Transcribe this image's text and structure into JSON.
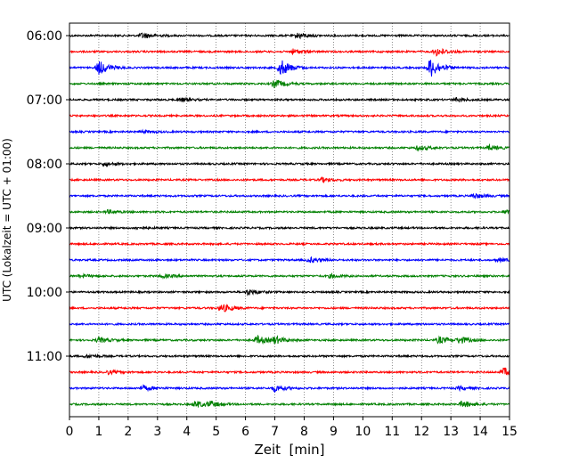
{
  "chart_data": {
    "type": "line",
    "title": "",
    "xlabel": "Zeit  [min]",
    "ylabel": "UTC (Lokalzeit = UTC + 01:00)",
    "xlim": [
      0,
      15
    ],
    "x_ticks": [
      "0",
      "1",
      "2",
      "3",
      "4",
      "5",
      "6",
      "7",
      "8",
      "9",
      "10",
      "11",
      "12",
      "13",
      "14",
      "15"
    ],
    "y_ticks": [
      "06:00",
      "07:00",
      "08:00",
      "09:00",
      "10:00",
      "11:00"
    ],
    "grid": "vertical dotted at each minute",
    "trace_interval_minutes": 15,
    "trace_colors": [
      "#000000",
      "#ff0000",
      "#0000ff",
      "#008000"
    ],
    "traces": [
      {
        "start": "06:00",
        "events": [
          {
            "t": 2.5,
            "a": 0.35
          },
          {
            "t": 7.8,
            "a": 0.35
          }
        ]
      },
      {
        "start": "06:15",
        "events": [
          {
            "t": 7.6,
            "a": 0.3
          },
          {
            "t": 12.5,
            "a": 0.5
          }
        ]
      },
      {
        "start": "06:30",
        "events": [
          {
            "t": 1.0,
            "a": 0.85
          },
          {
            "t": 7.2,
            "a": 1.0
          },
          {
            "t": 12.3,
            "a": 1.2
          }
        ]
      },
      {
        "start": "06:45",
        "events": [
          {
            "t": 7.0,
            "a": 0.5
          }
        ]
      },
      {
        "start": "07:00",
        "events": [
          {
            "t": 3.8,
            "a": 0.2
          },
          {
            "t": 13.2,
            "a": 0.2
          }
        ]
      },
      {
        "start": "07:15",
        "events": []
      },
      {
        "start": "07:30",
        "events": [
          {
            "t": 2.5,
            "a": 0.15
          }
        ]
      },
      {
        "start": "07:45",
        "events": [
          {
            "t": 11.9,
            "a": 0.3
          },
          {
            "t": 14.3,
            "a": 0.3
          }
        ]
      },
      {
        "start": "08:00",
        "events": [
          {
            "t": 1.2,
            "a": 0.2
          }
        ]
      },
      {
        "start": "08:15",
        "events": [
          {
            "t": 8.6,
            "a": 0.25
          }
        ]
      },
      {
        "start": "08:30",
        "events": [
          {
            "t": 13.8,
            "a": 0.3
          }
        ]
      },
      {
        "start": "08:45",
        "events": [
          {
            "t": 1.3,
            "a": 0.2
          },
          {
            "t": 14.9,
            "a": 0.3
          }
        ]
      },
      {
        "start": "09:00",
        "events": [
          {
            "t": 2.3,
            "a": 0.15
          }
        ]
      },
      {
        "start": "09:15",
        "events": []
      },
      {
        "start": "09:30",
        "events": [
          {
            "t": 8.2,
            "a": 0.3
          },
          {
            "t": 14.6,
            "a": 0.2
          }
        ]
      },
      {
        "start": "09:45",
        "events": [
          {
            "t": 0.4,
            "a": 0.2
          },
          {
            "t": 3.2,
            "a": 0.2
          },
          {
            "t": 8.9,
            "a": 0.2
          }
        ]
      },
      {
        "start": "10:00",
        "events": [
          {
            "t": 6.1,
            "a": 0.35
          }
        ]
      },
      {
        "start": "10:15",
        "events": [
          {
            "t": 5.2,
            "a": 0.5
          }
        ]
      },
      {
        "start": "10:30",
        "events": []
      },
      {
        "start": "10:45",
        "events": [
          {
            "t": 1.0,
            "a": 0.3
          },
          {
            "t": 6.4,
            "a": 0.5
          },
          {
            "t": 7.0,
            "a": 0.4
          },
          {
            "t": 12.6,
            "a": 0.4
          },
          {
            "t": 13.3,
            "a": 0.4
          }
        ]
      },
      {
        "start": "11:00",
        "events": [
          {
            "t": 0.6,
            "a": 0.2
          }
        ]
      },
      {
        "start": "11:15",
        "events": [
          {
            "t": 1.3,
            "a": 0.2
          },
          {
            "t": 14.8,
            "a": 0.5
          }
        ]
      },
      {
        "start": "11:30",
        "events": [
          {
            "t": 2.5,
            "a": 0.3
          },
          {
            "t": 7.0,
            "a": 0.4
          },
          {
            "t": 13.3,
            "a": 0.2
          }
        ]
      },
      {
        "start": "11:45",
        "events": [
          {
            "t": 4.3,
            "a": 0.4
          },
          {
            "t": 4.8,
            "a": 0.3
          },
          {
            "t": 13.4,
            "a": 0.4
          }
        ]
      }
    ]
  }
}
